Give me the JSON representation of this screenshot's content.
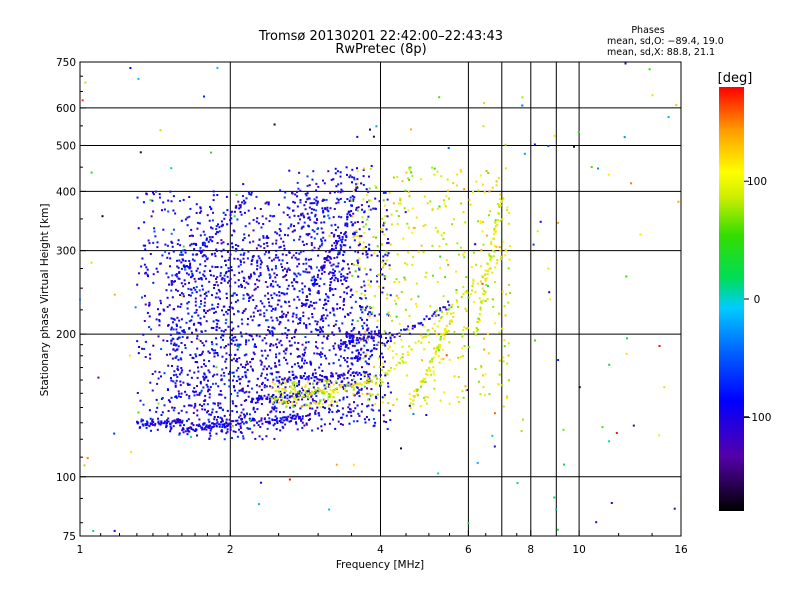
{
  "chart_data": {
    "type": "scatter",
    "title": "Tromsø 20130201 22:42:00–22:43:43",
    "subtitle": "RwPretec (8p)",
    "xlabel": "Frequency [MHz]",
    "ylabel": "Stationary phase Virtual Height [km]",
    "x_scale": "log",
    "y_scale": "log",
    "xlim": [
      1,
      16
    ],
    "ylim": [
      75,
      750
    ],
    "x_ticks": [
      1,
      2,
      4,
      6,
      8,
      10,
      16
    ],
    "x_tick_labels": [
      "1",
      "2",
      "4",
      "6",
      "8",
      "10",
      "16"
    ],
    "x_gridlines": [
      2,
      4,
      6,
      7,
      8,
      9,
      10
    ],
    "y_ticks": [
      75,
      100,
      200,
      300,
      400,
      500,
      600,
      750
    ],
    "y_tick_labels": [
      "75",
      "100",
      "200",
      "300",
      "400",
      "500",
      "600",
      "750"
    ],
    "grid": true,
    "phases": {
      "title": "Phases",
      "line1": "mean, sd,O: −89.4, 19.0",
      "line2": "mean, sd,X:  88.8, 21.1"
    },
    "colorbar": {
      "label": "[deg]",
      "range": [
        -180,
        180
      ],
      "ticks": [
        100,
        0,
        -100
      ],
      "tick_labels": [
        "100",
        "0",
        "−100"
      ],
      "colormap": "rainbow"
    },
    "series": [
      {
        "mode": "O",
        "phase": -100,
        "traces": [
          {
            "f": [
              1.3,
              1.6
            ],
            "h": [
              130,
              130
            ]
          },
          {
            "f": [
              1.6,
              2.0
            ],
            "h": [
              125,
              130
            ]
          },
          {
            "f": [
              2.0,
              2.8
            ],
            "h": [
              130,
              133
            ]
          },
          {
            "f": [
              2.2,
              3.0
            ],
            "h": [
              145,
              150
            ]
          },
          {
            "f": [
              2.5,
              3.8
            ],
            "h": [
              160,
              165
            ]
          },
          {
            "f": [
              2.8,
              3.3
            ],
            "h": [
              230,
              320
            ]
          },
          {
            "f": [
              3.0,
              3.6
            ],
            "h": [
              200,
              420
            ]
          },
          {
            "f": [
              3.3,
              4.0
            ],
            "h": [
              190,
              200
            ]
          },
          {
            "f": [
              3.5,
              5.5
            ],
            "h": [
              175,
              230
            ]
          },
          {
            "f": [
              1.5,
              2.2
            ],
            "h": [
              250,
              400
            ]
          }
        ],
        "clouds": [
          {
            "f": [
              1.3,
              4.2
            ],
            "h": [
              125,
              400
            ],
            "n": 1100
          },
          {
            "f": [
              1.5,
              2.6
            ],
            "h": [
              120,
              320
            ],
            "n": 700
          },
          {
            "f": [
              2.6,
              3.8
            ],
            "h": [
              130,
              450
            ],
            "n": 500
          }
        ]
      },
      {
        "mode": "X",
        "phase": 88,
        "traces": [
          {
            "f": [
              4.0,
              7.2
            ],
            "h": [
              160,
              300
            ]
          },
          {
            "f": [
              4.6,
              5.6
            ],
            "h": [
              140,
              220
            ]
          },
          {
            "f": [
              6.2,
              7.0
            ],
            "h": [
              200,
              390
            ]
          },
          {
            "f": [
              2.8,
              4.0
            ],
            "h": [
              150,
              160
            ]
          }
        ],
        "clouds": [
          {
            "f": [
              3.5,
              7.3
            ],
            "h": [
              140,
              450
            ],
            "n": 450
          },
          {
            "f": [
              2.4,
              3.3
            ],
            "h": [
              140,
              160
            ],
            "n": 120
          }
        ]
      },
      {
        "mode": "scatter",
        "phase": 30,
        "clouds": [
          {
            "f": [
              1.0,
              16.0
            ],
            "h": [
              75,
              750
            ],
            "n": 140
          }
        ]
      }
    ]
  }
}
